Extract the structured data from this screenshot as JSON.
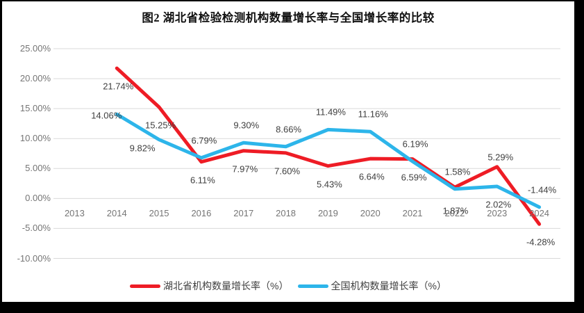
{
  "chart_data": {
    "type": "line",
    "title": "图2  湖北省检验检测机构数量增长率与全国增长率的比较",
    "categories": [
      "2013",
      "2014",
      "2015",
      "2016",
      "2017",
      "2018",
      "2019",
      "2020",
      "2021",
      "2022",
      "2023",
      "2024"
    ],
    "series": [
      {
        "name": "湖北省机构数量增长率（%）",
        "color": "#EE1C25",
        "values": [
          null,
          21.74,
          15.25,
          6.11,
          7.97,
          7.6,
          5.43,
          6.64,
          6.59,
          1.87,
          5.29,
          -4.28
        ],
        "labels": [
          null,
          "21.74%",
          "15.25%",
          "6.11%",
          "7.97%",
          "7.60%",
          "5.43%",
          "6.64%",
          "6.59%",
          "1.87%",
          "5.29%",
          "-4.28%"
        ],
        "label_pos": [
          null,
          "below",
          "below",
          "below",
          "below",
          "below",
          "below",
          "below",
          "below",
          "far-below",
          "above-near",
          "below"
        ]
      },
      {
        "name": "全国机构数量增长率（%）",
        "color": "#2DB5EA",
        "values": [
          null,
          14.06,
          9.82,
          6.79,
          9.3,
          8.66,
          11.49,
          11.16,
          6.19,
          1.58,
          2.02,
          -1.44
        ],
        "labels": [
          null,
          "14.06%",
          "9.82%",
          "6.79%",
          "9.30%",
          "8.66%",
          "11.49%",
          "11.16%",
          "6.19%",
          "1.58%",
          "2.02%",
          "-1.44%"
        ],
        "label_pos": [
          null,
          "left",
          "below-left",
          "above",
          "above",
          "above",
          "above",
          "above",
          "above",
          "above",
          "below",
          "above"
        ]
      }
    ],
    "y_axis": {
      "min": -10,
      "max": 25,
      "step": 5,
      "tick_labels": [
        "25.00%",
        "20.00%",
        "15.00%",
        "10.00%",
        "5.00%",
        "0.00%",
        "-5.00%",
        "-10.00%"
      ]
    },
    "grid": true,
    "grid_color": "#D9D9D9",
    "legend_position": "bottom"
  }
}
